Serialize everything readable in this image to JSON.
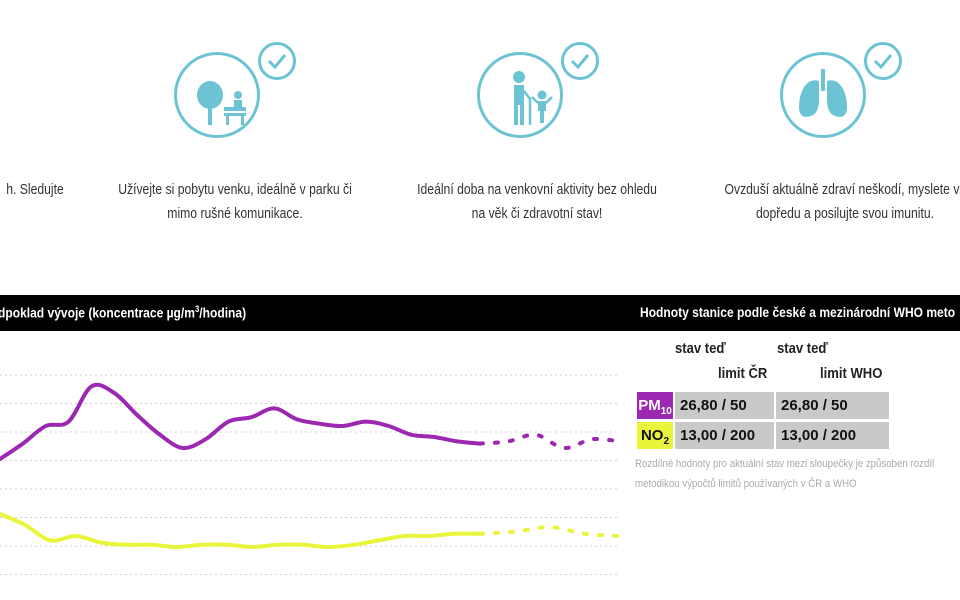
{
  "advice": [
    {
      "line1": "h. Sledujte",
      "line2": ""
    },
    {
      "line1": "Užívejte si pobytu venku, ideálně v parku či",
      "line2": "mimo rušné komunikace."
    },
    {
      "line1": "Ideální doba na venkovní aktivity bez ohledu",
      "line2": "na věk či zdravotní stav!"
    },
    {
      "line1": "Ovzduší aktuálně zdraví neškodí, myslete vš",
      "line2": "dopředu a posilujte svou imunitu."
    }
  ],
  "icons": [
    "park-bench-icon",
    "elderly-child-icon",
    "lungs-icon",
    "check-icon"
  ],
  "colors": {
    "accent": "#6bc3d3",
    "pm10": "#9c27b0",
    "no2": "#e8f53a",
    "bar": "#000000",
    "cell": "#c9c9c9"
  },
  "chart_header": {
    "prefix": "dpoklad vývoje (koncentrace µg/m",
    "sup": "3",
    "suffix": "/hodina)"
  },
  "stations_header": "Hodnoty stanice podle české a mezinárodní WHO meto",
  "table": {
    "col1_top": "stav teď",
    "col1_bottom": "limit ČR",
    "col2_top": "stav teď",
    "col2_bottom": "limit WHO",
    "rows": [
      {
        "name": "PM",
        "sub": "10",
        "cr": "26,80 / 50",
        "who": "26,80 / 50"
      },
      {
        "name": "NO",
        "sub": "2",
        "cr": "13,00 / 200",
        "who": "13,00 / 200"
      }
    ]
  },
  "note_line1": "Rozdílné hodnoty pro aktuální stav mezi sloupečky je způsoben rozdíl",
  "note_line2": "metodikou výpočtů limitů používaných v ČR a WHO",
  "chart_data": {
    "type": "line",
    "ylabel": "µg/m3/hodina",
    "series": [
      {
        "name": "PM10",
        "values": [
          55,
          62,
          70,
          72,
          88,
          85,
          75,
          66,
          60,
          64,
          72,
          74,
          78,
          73,
          71,
          70,
          72,
          70,
          66,
          65,
          63,
          62
        ],
        "forecast": [
          63,
          66,
          60,
          64,
          63
        ]
      },
      {
        "name": "NO2",
        "values": [
          30,
          25,
          18,
          20,
          17,
          16,
          16,
          15,
          16,
          16,
          15,
          16,
          16,
          15,
          16,
          18,
          20,
          20,
          21,
          21
        ],
        "forecast": [
          22,
          24,
          21,
          20
        ]
      }
    ],
    "grid": true
  }
}
